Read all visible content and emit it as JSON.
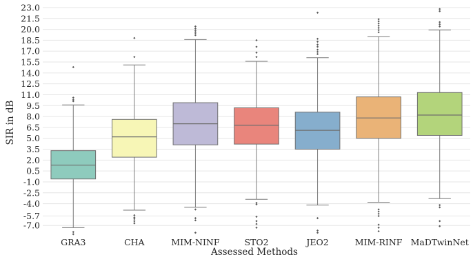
{
  "chart_data": {
    "type": "box",
    "title": "",
    "xlabel": "Assessed Methods",
    "ylabel": "SIR in dB",
    "ylim": [
      -8.5,
      23.0
    ],
    "y_ticks": [
      -7.0,
      -5.7,
      -4.0,
      -2.5,
      -1.0,
      0.5,
      2.0,
      3.5,
      5.0,
      6.5,
      8.0,
      9.5,
      11.0,
      12.5,
      14.0,
      15.5,
      17.0,
      18.5,
      20.0,
      21.5,
      23.0
    ],
    "y_tick_labels": [
      "-7.0",
      "-5.7",
      "-4.0",
      "-2.5",
      "-1.0",
      "0.5",
      "2.0",
      "3.5",
      "5.0",
      "6.5",
      "8.0",
      "9.5",
      "11.0",
      "12.5",
      "14.0",
      "15.5",
      "17.0",
      "18.5",
      "20.0",
      "21.5",
      "23.0"
    ],
    "grid": true,
    "categories": [
      "GRA3",
      "CHA",
      "MIM-NINF",
      "STO2",
      "JEO2",
      "MIM-RINF",
      "MaDTwinNet"
    ],
    "colors": [
      "#8ecbbd",
      "#f7f6b6",
      "#bebad7",
      "#e9857c",
      "#86aecd",
      "#eab377",
      "#b3d47b"
    ],
    "boxes": [
      {
        "whislo": -7.3,
        "q1": -0.6,
        "med": 1.3,
        "q3": 3.3,
        "whishi": 9.6,
        "fliers": [
          14.8,
          10.6,
          10.3,
          10.1,
          -7.9,
          -8.2
        ]
      },
      {
        "whislo": -4.9,
        "q1": 2.4,
        "med": 5.2,
        "q3": 7.6,
        "whishi": 15.1,
        "fliers": [
          18.8,
          16.2,
          -5.6,
          -5.9,
          -6.1,
          -6.4,
          -6.7
        ]
      },
      {
        "whislo": -4.5,
        "q1": 4.1,
        "med": 7.0,
        "q3": 9.9,
        "whishi": 18.6,
        "fliers": [
          20.4,
          20.1,
          19.8,
          19.5,
          19.2,
          -4.8,
          -6.0,
          -6.3,
          -8.0
        ]
      },
      {
        "whislo": -3.4,
        "q1": 4.2,
        "med": 6.8,
        "q3": 9.2,
        "whishi": 15.6,
        "fliers": [
          18.5,
          17.6,
          16.8,
          16.2,
          -3.9,
          -4.1,
          -5.8,
          -6.4,
          -6.8,
          -7.3
        ]
      },
      {
        "whislo": -4.2,
        "q1": 3.5,
        "med": 6.1,
        "q3": 8.6,
        "whishi": 16.1,
        "fliers": [
          22.3,
          18.7,
          18.3,
          17.9,
          17.6,
          17.2,
          16.9,
          16.6,
          -6.0,
          -7.7,
          -8.0
        ]
      },
      {
        "whislo": -3.8,
        "q1": 5.0,
        "med": 7.8,
        "q3": 10.7,
        "whishi": 19.0,
        "fliers": [
          21.4,
          21.1,
          20.8,
          20.5,
          20.2,
          19.9,
          19.6,
          -4.8,
          -5.1,
          -5.4,
          -5.7,
          -6.9,
          -7.3,
          -7.8
        ]
      },
      {
        "whislo": -3.3,
        "q1": 5.4,
        "med": 8.2,
        "q3": 11.3,
        "whishi": 19.9,
        "fliers": [
          22.8,
          22.5,
          21.0,
          20.7,
          20.4,
          -4.2,
          -4.5,
          -6.4,
          -7.1
        ]
      }
    ]
  }
}
